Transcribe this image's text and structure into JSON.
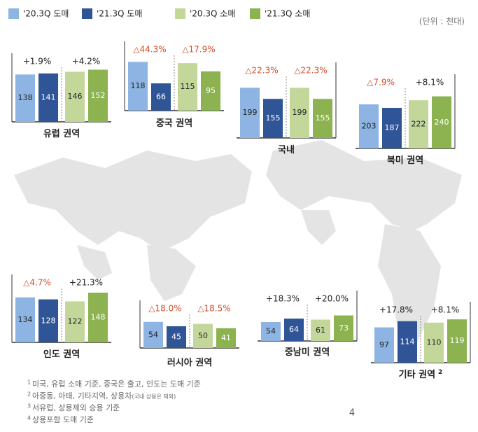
{
  "legend": [
    {
      "name": "'20.3Q 도매",
      "color": "#8db4e2"
    },
    {
      "name": "'21.3Q 도매",
      "color": "#2f5597"
    },
    {
      "name": "'20.3Q 소매",
      "color": "#c4d79b"
    },
    {
      "name": "'21.3Q 소매",
      "color": "#8cb350"
    }
  ],
  "unit": "(단위 : 천대)",
  "chart_data": [
    {
      "type": "bar",
      "title": "유럽 권역",
      "values": [
        138,
        141,
        146,
        152
      ],
      "annotations": [
        {
          "text": "+1.9%",
          "color": "#222222"
        },
        {
          "text": "+4.2%",
          "color": "#222222"
        }
      ]
    },
    {
      "type": "bar",
      "title": "중국 권역",
      "values": [
        118,
        66,
        115,
        95
      ],
      "annotations": [
        {
          "text": "△44.3%",
          "color": "#d4502c"
        },
        {
          "text": "△17.9%",
          "color": "#d4502c"
        }
      ]
    },
    {
      "type": "bar",
      "title": "국내",
      "values": [
        199,
        155,
        199,
        155
      ],
      "annotations": [
        {
          "text": "△22.3%",
          "color": "#d4502c"
        },
        {
          "text": "△22.3%",
          "color": "#d4502c"
        }
      ]
    },
    {
      "type": "bar",
      "title": "북미 권역",
      "values": [
        203,
        187,
        222,
        240
      ],
      "annotations": [
        {
          "text": "△7.9%",
          "color": "#d4502c"
        },
        {
          "text": "+8.1%",
          "color": "#222222"
        }
      ]
    },
    {
      "type": "bar",
      "title": "인도 권역",
      "values": [
        134,
        128,
        122,
        148
      ],
      "annotations": [
        {
          "text": "△4.7%",
          "color": "#d4502c"
        },
        {
          "text": "+21.3%",
          "color": "#222222"
        }
      ]
    },
    {
      "type": "bar",
      "title": "러시아 권역",
      "values": [
        54,
        45,
        50,
        41
      ],
      "annotations": [
        {
          "text": "△18.0%",
          "color": "#d4502c"
        },
        {
          "text": "△18.5%",
          "color": "#d4502c"
        }
      ]
    },
    {
      "type": "bar",
      "title": "중남미 권역",
      "values": [
        54,
        64,
        61,
        73
      ],
      "annotations": [
        {
          "text": "+18.3%",
          "color": "#222222"
        },
        {
          "text": "+20.0%",
          "color": "#222222"
        }
      ]
    },
    {
      "type": "bar",
      "title": "기타 권역",
      "title_sup": "2",
      "values": [
        97,
        114,
        110,
        119
      ],
      "annotations": [
        {
          "text": "+17.8%",
          "color": "#222222"
        },
        {
          "text": "+8.1%",
          "color": "#222222"
        }
      ]
    }
  ],
  "footnotes": [
    {
      "mark": "1",
      "text": "미국, 유럽 소매 기준, 중국은 출고, 인도는 도매 기준"
    },
    {
      "mark": "2",
      "text": "아중동, 아태, 기타지역, 상용차",
      "note": "(국내 상용은 제외)"
    },
    {
      "mark": "3",
      "text": "서유럽, 상용제외 승용 기준"
    },
    {
      "mark": "4",
      "text": "상용포함 도매 기준"
    }
  ],
  "page_number": "4"
}
